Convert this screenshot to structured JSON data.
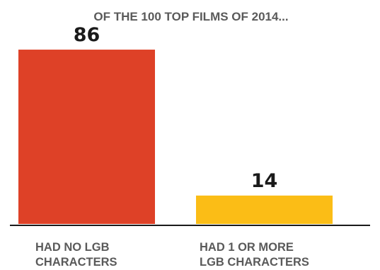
{
  "chart_data": {
    "type": "bar",
    "title": "OF THE 100 TOP FILMS OF 2014...",
    "categories": [
      [
        "HAD NO LGB",
        "CHARACTERS"
      ],
      [
        "HAD 1 OR MORE",
        "LGB CHARACTERS"
      ]
    ],
    "values": [
      86,
      14
    ],
    "value_labels": [
      "86",
      "14"
    ],
    "colors": [
      "#de4127",
      "#fbbd16"
    ],
    "xlabel": "",
    "ylabel": "",
    "ylim": [
      0,
      100
    ],
    "grid": false,
    "legend": "none"
  }
}
